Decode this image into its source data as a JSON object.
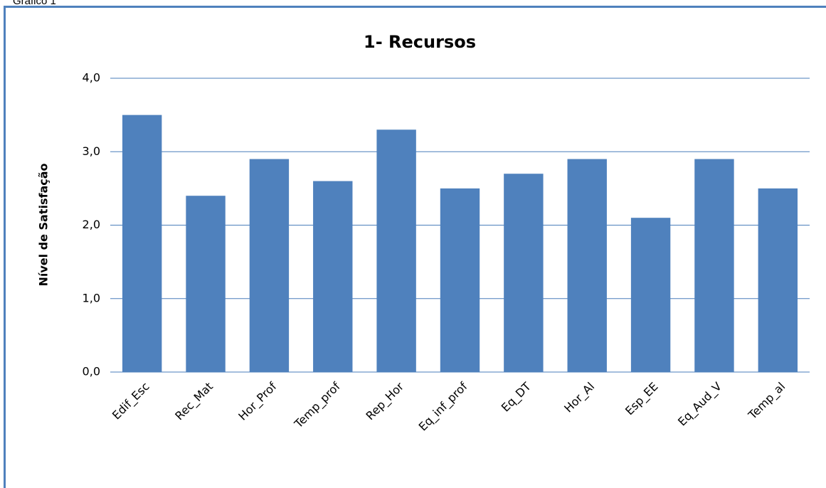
{
  "caption": "Gráfico 1",
  "chart_data": {
    "type": "bar",
    "title": "1- Recursos",
    "y_label": "Nível de Satisfação",
    "categories": [
      "Edif_Esc",
      "Rec_Mat",
      "Hor_Prof",
      "Temp_prof",
      "Rep_Hor",
      "Eq_inf_prof",
      "Eq_DT",
      "Hor_Al",
      "Esp_EE",
      "Eq_Aud_V",
      "Temp_al"
    ],
    "values": [
      3.5,
      2.4,
      2.9,
      2.6,
      3.3,
      2.5,
      2.7,
      2.9,
      2.1,
      2.9,
      2.5
    ],
    "color": "#4f81bd",
    "ylim": [
      0,
      4
    ],
    "yticks": [
      {
        "value": 0,
        "label": "0,0"
      },
      {
        "value": 1,
        "label": "1,0"
      },
      {
        "value": 2,
        "label": "2,0"
      },
      {
        "value": 3,
        "label": "3,0"
      },
      {
        "value": 4,
        "label": "4,0"
      }
    ],
    "grid": true
  }
}
